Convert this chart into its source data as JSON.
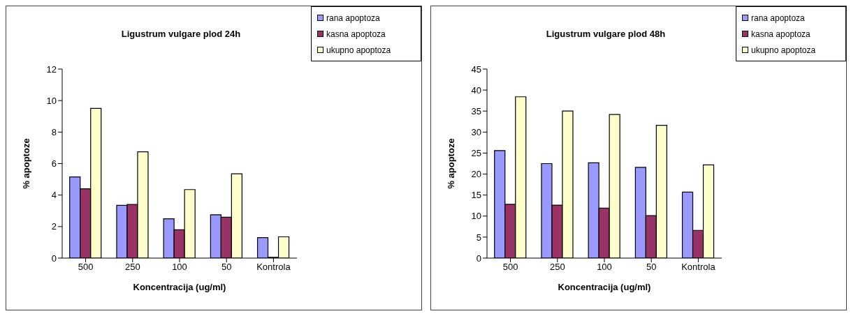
{
  "chart_data": [
    {
      "type": "bar",
      "title": "Ligustrum vulgare plod 24h",
      "xlabel": "Koncentracija (ug/ml)",
      "ylabel": "% apoptoze",
      "categories": [
        "500",
        "250",
        "100",
        "50",
        "Kontrola"
      ],
      "series": [
        {
          "name": "rana apoptoza",
          "color": "#9999ff",
          "values": [
            5.15,
            3.35,
            2.5,
            2.75,
            1.3
          ]
        },
        {
          "name": "kasna apoptoza",
          "color": "#993366",
          "values": [
            4.4,
            3.4,
            1.8,
            2.6,
            0.05
          ]
        },
        {
          "name": "ukupno apoptoza",
          "color": "#ffffcc",
          "values": [
            9.5,
            6.75,
            4.35,
            5.35,
            1.35
          ]
        }
      ],
      "ylim": [
        0,
        12
      ],
      "yticks": [
        0,
        2,
        4,
        6,
        8,
        10,
        12
      ],
      "grid": false,
      "legend": "top right"
    },
    {
      "type": "bar",
      "title": "Ligustrum vulgare plod 48h",
      "xlabel": "Koncentracija (ug/ml)",
      "ylabel": "% apoptoze",
      "categories": [
        "500",
        "250",
        "100",
        "50",
        "Kontrola"
      ],
      "series": [
        {
          "name": "rana apoptoza",
          "color": "#9999ff",
          "values": [
            25.6,
            22.5,
            22.7,
            21.6,
            15.7
          ]
        },
        {
          "name": "kasna apoptoza",
          "color": "#993366",
          "values": [
            12.8,
            12.6,
            11.9,
            10.1,
            6.6
          ]
        },
        {
          "name": "ukupno apoptoza",
          "color": "#ffffcc",
          "values": [
            38.4,
            35,
            34.2,
            31.6,
            22.2
          ]
        }
      ],
      "ylim": [
        0,
        45
      ],
      "yticks": [
        0,
        5,
        10,
        15,
        20,
        25,
        30,
        35,
        40,
        45
      ],
      "grid": false,
      "legend": "top right"
    }
  ]
}
